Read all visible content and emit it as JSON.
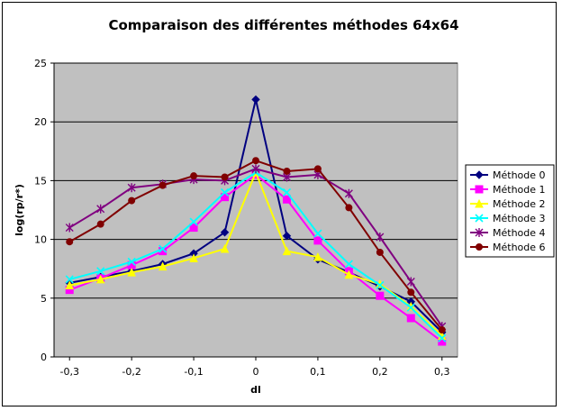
{
  "chart_data": {
    "type": "line",
    "title": "Comparaison des différentes méthodes   64x64",
    "xlabel": "dl",
    "ylabel": "log(rp/r*)",
    "x": [
      -0.3,
      -0.25,
      -0.2,
      -0.15,
      -0.1,
      -0.05,
      0,
      0.05,
      0.1,
      0.15,
      0.2,
      0.25,
      0.3
    ],
    "x_tick_labels": [
      "-0,3",
      "-0,2",
      "-0,1",
      "0",
      "0,1",
      "0,2",
      "0,3"
    ],
    "x_tick_values": [
      -0.3,
      -0.2,
      -0.1,
      0,
      0.1,
      0.2,
      0.3
    ],
    "xlim": [
      -0.325,
      0.325
    ],
    "y_ticks": [
      "0",
      "5",
      "10",
      "15",
      "20",
      "25"
    ],
    "ylim": [
      0,
      25
    ],
    "grid": "horizontal",
    "legend_position": "right",
    "plot_background": "#c0c0c0",
    "series": [
      {
        "name": "Méthode 0",
        "color": "#000080",
        "marker": "diamond",
        "values": [
          6.3,
          6.8,
          7.3,
          7.9,
          8.8,
          10.6,
          21.9,
          10.3,
          8.3,
          7.2,
          6.0,
          4.7,
          2.1
        ]
      },
      {
        "name": "Méthode 1",
        "color": "#ff00ff",
        "marker": "square",
        "values": [
          5.7,
          6.7,
          7.8,
          9.0,
          11.0,
          13.6,
          15.5,
          13.4,
          9.9,
          7.3,
          5.2,
          3.3,
          1.3
        ]
      },
      {
        "name": "Méthode 2",
        "color": "#ffff00",
        "marker": "triangle",
        "values": [
          6.1,
          6.6,
          7.2,
          7.7,
          8.4,
          9.2,
          15.7,
          9.0,
          8.5,
          7.0,
          6.2,
          4.3,
          1.8
        ]
      },
      {
        "name": "Méthode 3",
        "color": "#00ffff",
        "marker": "x",
        "values": [
          6.6,
          7.3,
          8.1,
          9.2,
          11.5,
          14.0,
          15.7,
          14.0,
          10.5,
          7.9,
          6.1,
          4.2,
          1.6
        ]
      },
      {
        "name": "Méthode 4",
        "color": "#800080",
        "marker": "star",
        "values": [
          11.0,
          12.6,
          14.4,
          14.7,
          15.1,
          15.0,
          16.0,
          15.3,
          15.5,
          13.9,
          10.2,
          6.4,
          2.6
        ]
      },
      {
        "name": "Méthode 6",
        "color": "#800000",
        "marker": "circle",
        "values": [
          9.8,
          11.3,
          13.3,
          14.6,
          15.4,
          15.3,
          16.7,
          15.8,
          16.0,
          12.7,
          8.9,
          5.5,
          2.3
        ]
      }
    ]
  }
}
